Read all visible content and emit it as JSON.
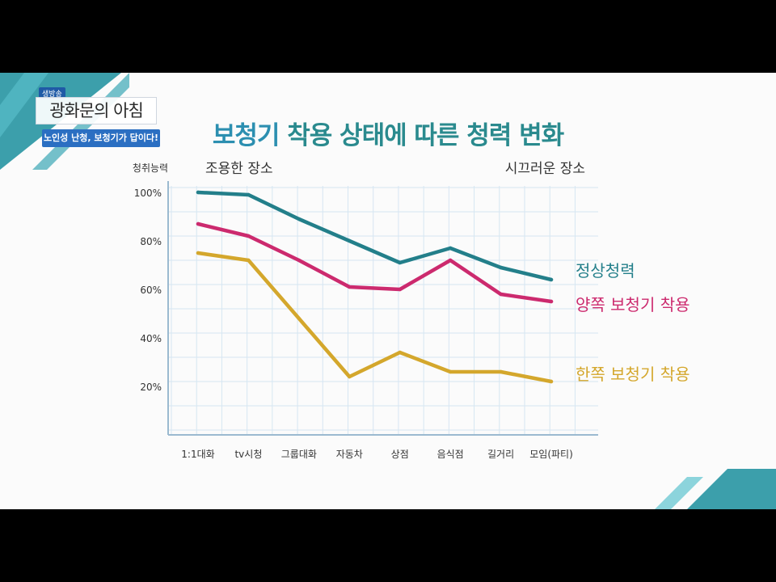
{
  "broadcast": {
    "show_tag": "생방송",
    "show_title": "광화문의 아침",
    "episode_caption": "노인성 난청, 보청기가 답이다!"
  },
  "chart_data": {
    "type": "line",
    "title_accent": "보청기",
    "title_rest": " 착용 상태에 따른 청력 변화",
    "ylabel": "청취능력",
    "xlabel": "",
    "ylim": [
      0,
      100
    ],
    "yticks": [
      20,
      40,
      60,
      80,
      100
    ],
    "ytick_labels": [
      "20%",
      "40%",
      "60%",
      "80%",
      "100%"
    ],
    "categories": [
      "1:1대화",
      "tv시청",
      "그룹대화",
      "자동차",
      "상점",
      "음식점",
      "길거리",
      "모임(파티)"
    ],
    "annotations": {
      "quiet": "조용한 장소",
      "noisy": "시끄러운 장소"
    },
    "grid": true,
    "legend_placement": "right, next to line ends",
    "series": [
      {
        "name": "정상청력",
        "color": "#237f8a",
        "values": [
          100,
          99,
          89,
          80,
          71,
          77,
          69,
          64
        ]
      },
      {
        "name": "양쪽 보청기 착용",
        "color": "#cc2a6e",
        "values": [
          87,
          82,
          72,
          61,
          60,
          72,
          58,
          55
        ]
      },
      {
        "name": "한쪽 보청기 착용",
        "color": "#d4a72c",
        "values": [
          75,
          72,
          48,
          24,
          34,
          26,
          26,
          22
        ]
      }
    ]
  }
}
